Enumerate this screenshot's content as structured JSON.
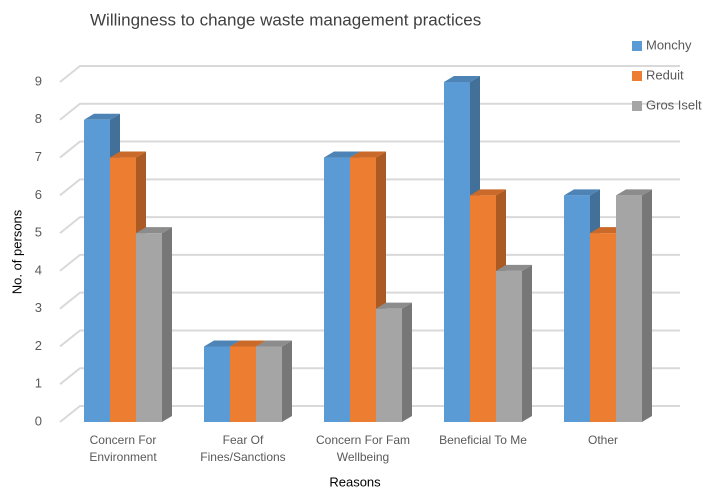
{
  "chart_data": {
    "type": "bar3d",
    "title": "Willingness to change waste management practices",
    "x_label": "Reasons",
    "y_label": "No. of persons",
    "categories": [
      "Concern For Environment",
      "Fear Of Fines/Sanctions",
      "Concern For Fam Wellbeing",
      "Beneficial To Me",
      "Other"
    ],
    "series": [
      {
        "name": "Monchy",
        "color": "#5b9bd5",
        "values": [
          8,
          2,
          7,
          9,
          6
        ]
      },
      {
        "name": "Reduit",
        "color": "#ed7d31",
        "values": [
          7,
          2,
          7,
          6,
          5
        ]
      },
      {
        "name": "Gros Iselt",
        "color": "#a5a5a5",
        "values": [
          5,
          2,
          3,
          4,
          6
        ]
      }
    ],
    "ylim": [
      0,
      9
    ],
    "yticks": [
      0,
      1,
      2,
      3,
      4,
      5,
      6,
      7,
      8,
      9
    ],
    "grid": true,
    "legend": "top-right"
  }
}
